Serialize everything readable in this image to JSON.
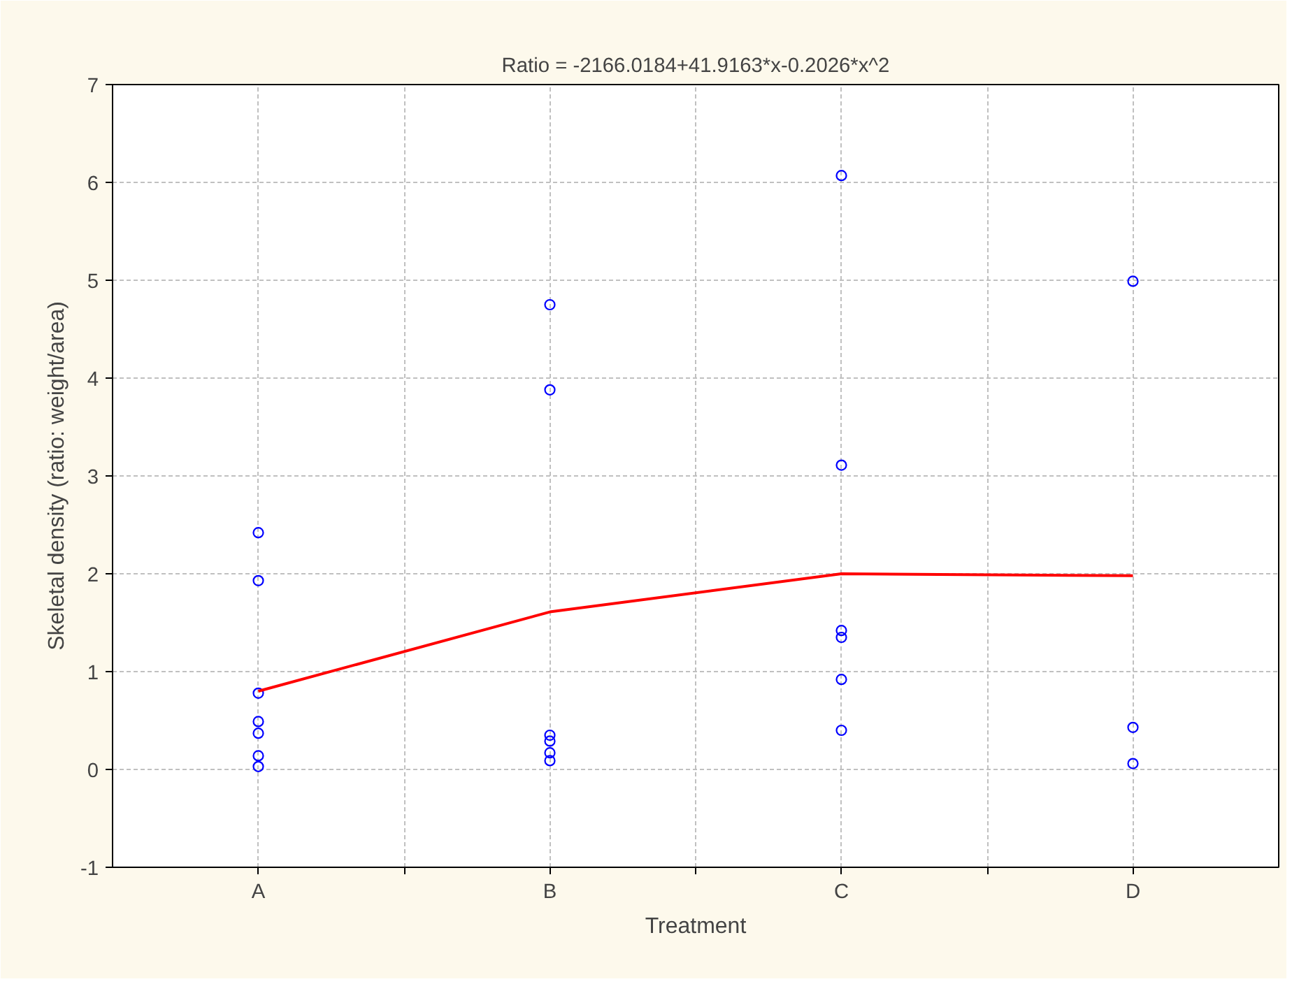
{
  "chart_data": {
    "type": "scatter",
    "title": "Ratio = -2166.0184+41.9163*x-0.2026*x^2",
    "xlabel": "Treatment",
    "ylabel": "Skeletal density (ratio: weight/area)",
    "categories": [
      "A",
      "B",
      "C",
      "D"
    ],
    "ylim": [
      -1,
      7
    ],
    "yticks": [
      -1,
      0,
      1,
      2,
      3,
      4,
      5,
      6,
      7
    ],
    "grid": true,
    "series": [
      {
        "color": "#0000ff",
        "marker": "circle",
        "x": [
          "A",
          "A",
          "A",
          "A",
          "A",
          "A",
          "A",
          "B",
          "B",
          "B",
          "B",
          "B",
          "B",
          "C",
          "C",
          "C",
          "C",
          "C",
          "C",
          "D",
          "D",
          "D"
        ],
        "values": [
          2.42,
          1.93,
          0.78,
          0.49,
          0.37,
          0.14,
          0.03,
          4.75,
          3.88,
          0.35,
          0.29,
          0.17,
          0.09,
          6.07,
          3.11,
          1.42,
          1.35,
          0.92,
          0.4,
          4.99,
          0.43,
          0.06
        ]
      },
      {
        "type": "line",
        "marker": "none",
        "color": "#ff0000",
        "x": [
          "A",
          "B",
          "C",
          "D"
        ],
        "values": [
          0.8,
          1.61,
          2.0,
          1.98
        ]
      }
    ]
  }
}
